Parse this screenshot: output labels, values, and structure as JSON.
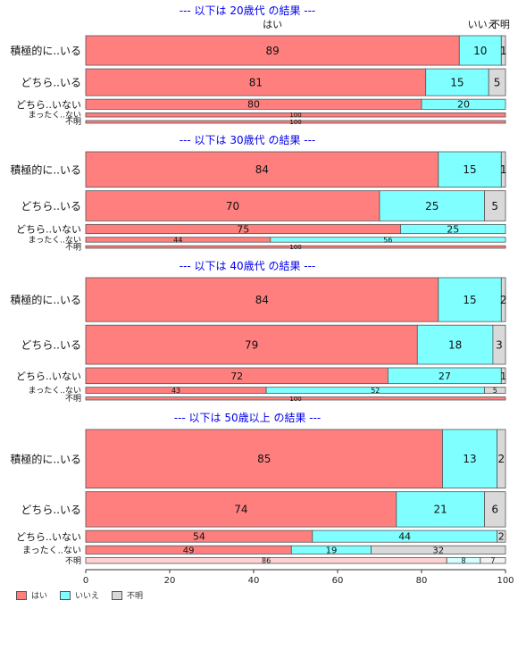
{
  "chart_data": {
    "type": "bar",
    "orientation": "horizontal-stacked",
    "col_header_labels": [
      "はい",
      "いいえ",
      "不明"
    ],
    "series_names": [
      "はい",
      "いいえ",
      "不明"
    ],
    "colors": {
      "yes": "#FF7F7F",
      "no": "#7FFFFF",
      "unknown": "#D9D9D9",
      "title": "#0000EE"
    },
    "xlim": [
      0,
      100
    ],
    "x_ticks": [
      0,
      20,
      40,
      60,
      80,
      100
    ],
    "panels": [
      {
        "title": "--- 以下は 20歳代 の結果 ---",
        "show_header": true,
        "rows": [
          {
            "label": "積極的に..いる",
            "values": [
              89,
              10,
              1
            ],
            "labels": [
              "89",
              "10",
              "1"
            ],
            "weight": 1.0,
            "font": 12
          },
          {
            "label": "どちら..いる",
            "values": [
              81,
              15,
              5
            ],
            "labels": [
              "81",
              "15",
              "5"
            ],
            "weight": 0.91,
            "font": 12
          },
          {
            "label": "どちら..いない",
            "values": [
              80,
              20,
              0
            ],
            "labels": [
              "80",
              "20",
              ""
            ],
            "weight": 0.34,
            "font": 11
          },
          {
            "label": "まったく..ない",
            "values": [
              100,
              0,
              0
            ],
            "labels": [
              "100",
              "",
              ""
            ],
            "weight": 0.14,
            "font": 7
          },
          {
            "label": "不明",
            "values": [
              100,
              0,
              0
            ],
            "labels": [
              "100",
              "",
              ""
            ],
            "weight": 0.09,
            "font": 7
          }
        ]
      },
      {
        "title": "--- 以下は 30歳代 の結果 ---",
        "show_header": false,
        "rows": [
          {
            "label": "積極的に..いる",
            "values": [
              84,
              15,
              1
            ],
            "labels": [
              "84",
              "15",
              "1"
            ],
            "weight": 1.0,
            "font": 12
          },
          {
            "label": "どちら..いる",
            "values": [
              70,
              25,
              5
            ],
            "labels": [
              "70",
              "25",
              "5"
            ],
            "weight": 0.85,
            "font": 12
          },
          {
            "label": "どちら..いない",
            "values": [
              75,
              25,
              0
            ],
            "labels": [
              "75",
              "25",
              ""
            ],
            "weight": 0.26,
            "font": 11
          },
          {
            "label": "まったく..ない",
            "values": [
              44,
              56,
              0
            ],
            "labels": [
              "44",
              "56",
              ""
            ],
            "weight": 0.14,
            "font": 8
          },
          {
            "label": "不明",
            "values": [
              100,
              0,
              0
            ],
            "labels": [
              "100",
              "",
              ""
            ],
            "weight": 0.07,
            "font": 7
          }
        ]
      },
      {
        "title": "--- 以下は 40歳代 の結果 ---",
        "show_header": false,
        "rows": [
          {
            "label": "積極的に..いる",
            "values": [
              84,
              15,
              2
            ],
            "labels": [
              "84",
              "15",
              "2"
            ],
            "weight": 1.0,
            "font": 12
          },
          {
            "label": "どちら..いる",
            "values": [
              79,
              18,
              3
            ],
            "labels": [
              "79",
              "18",
              "3"
            ],
            "weight": 0.89,
            "font": 12
          },
          {
            "label": "どちら..いない",
            "values": [
              72,
              27,
              1
            ],
            "labels": [
              "72",
              "27",
              "1"
            ],
            "weight": 0.36,
            "font": 11
          },
          {
            "label": "まったく..ない",
            "values": [
              43,
              52,
              5
            ],
            "labels": [
              "43",
              "52",
              "5"
            ],
            "weight": 0.14,
            "font": 8
          },
          {
            "label": "不明",
            "values": [
              100,
              0,
              0
            ],
            "labels": [
              "100",
              "",
              ""
            ],
            "weight": 0.07,
            "font": 7
          }
        ]
      },
      {
        "title": "--- 以下は 50歳以上 の結果 ---",
        "show_header": false,
        "rows": [
          {
            "label": "積極的に..いる",
            "values": [
              85,
              13,
              2
            ],
            "labels": [
              "85",
              "13",
              "2"
            ],
            "weight": 1.0,
            "font": 12
          },
          {
            "label": "どちら..いる",
            "values": [
              74,
              21,
              6
            ],
            "labels": [
              "74",
              "21",
              "6"
            ],
            "weight": 0.6,
            "font": 12
          },
          {
            "label": "どちら..いない",
            "values": [
              54,
              44,
              2
            ],
            "labels": [
              "54",
              "44",
              "2"
            ],
            "weight": 0.2,
            "font": 11
          },
          {
            "label": "まったく..ない",
            "values": [
              49,
              19,
              32
            ],
            "labels": [
              "49",
              "19",
              "32"
            ],
            "weight": 0.14,
            "font": 10
          },
          {
            "label": "不明",
            "values": [
              86,
              8,
              7
            ],
            "labels": [
              "86",
              "8",
              "7"
            ],
            "weight": 0.1,
            "font": 8,
            "faded": true
          }
        ]
      }
    ],
    "legend": [
      "はい",
      "いいえ",
      "不明"
    ],
    "legend_position": "bottom-left"
  }
}
